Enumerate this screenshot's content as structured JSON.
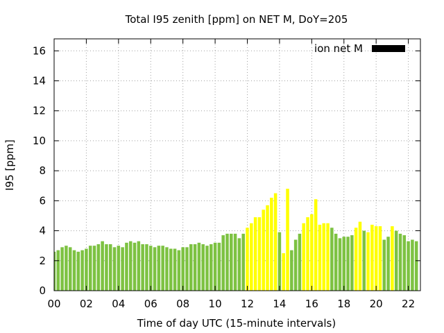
{
  "chart_data": {
    "type": "bar",
    "title": "Total I95 zenith [ppm] on NET M, DoY=205",
    "xlabel": "Time of day UTC (15-minute intervals)",
    "ylabel": "I95 [ppm]",
    "legend": {
      "label": "ion net M",
      "color": "#000000",
      "placement": "top-right"
    },
    "xlim": [
      0,
      22.75
    ],
    "ylim": [
      0,
      16.8
    ],
    "x_ticks": [
      "00",
      "02",
      "04",
      "06",
      "08",
      "10",
      "12",
      "14",
      "16",
      "18",
      "20",
      "22"
    ],
    "x_tick_values": [
      0,
      2,
      4,
      6,
      8,
      10,
      12,
      14,
      16,
      18,
      20,
      22
    ],
    "y_ticks": [
      0,
      2,
      4,
      6,
      8,
      10,
      12,
      14,
      16
    ],
    "grid": true,
    "interval_hours": 0.25,
    "colors": {
      "green": "#7dc242",
      "yellow": "#ffff00"
    },
    "values": [
      2.6,
      2.7,
      2.9,
      3.0,
      2.9,
      2.7,
      2.6,
      2.7,
      2.8,
      3.0,
      3.0,
      3.1,
      3.3,
      3.1,
      3.1,
      2.9,
      3.0,
      2.9,
      3.2,
      3.3,
      3.2,
      3.3,
      3.1,
      3.1,
      3.0,
      2.9,
      3.0,
      3.0,
      2.9,
      2.8,
      2.8,
      2.7,
      2.9,
      2.9,
      3.1,
      3.1,
      3.2,
      3.1,
      3.0,
      3.1,
      3.2,
      3.2,
      3.7,
      3.8,
      3.8,
      3.8,
      3.5,
      3.8,
      4.2,
      4.5,
      4.9,
      4.9,
      5.4,
      5.7,
      6.2,
      6.5,
      3.9,
      2.5,
      6.8,
      2.7,
      3.4,
      3.8,
      4.5,
      4.9,
      5.1,
      6.1,
      4.4,
      4.5,
      4.5,
      4.2,
      3.8,
      3.5,
      3.6,
      3.6,
      3.7,
      4.2,
      4.6,
      4.0,
      3.9,
      4.4,
      4.3,
      4.3,
      3.4,
      3.6,
      4.3,
      4.0,
      3.8,
      3.7,
      3.3,
      3.4,
      3.3
    ],
    "color_index": [
      0,
      0,
      0,
      0,
      0,
      0,
      0,
      0,
      0,
      0,
      0,
      0,
      0,
      0,
      0,
      0,
      0,
      0,
      0,
      0,
      0,
      0,
      0,
      0,
      0,
      0,
      0,
      0,
      0,
      0,
      0,
      0,
      0,
      0,
      0,
      0,
      0,
      0,
      0,
      0,
      0,
      0,
      0,
      0,
      0,
      0,
      0,
      0,
      1,
      1,
      1,
      1,
      1,
      1,
      1,
      1,
      0,
      1,
      1,
      0,
      0,
      0,
      1,
      1,
      1,
      1,
      1,
      1,
      1,
      0,
      0,
      0,
      0,
      0,
      0,
      1,
      1,
      0,
      1,
      1,
      1,
      1,
      0,
      0,
      1,
      0,
      0,
      0,
      0,
      0,
      0
    ]
  }
}
